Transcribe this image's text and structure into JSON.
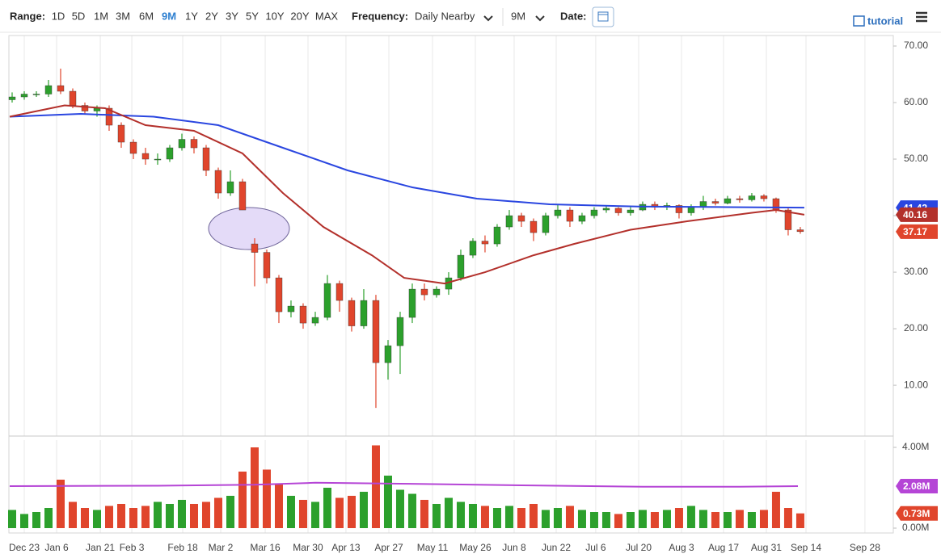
{
  "toolbar": {
    "range_label": "Range:",
    "ranges": [
      "1D",
      "5D",
      "1M",
      "3M",
      "6M",
      "9M",
      "1Y",
      "2Y",
      "3Y",
      "5Y",
      "10Y",
      "20Y",
      "MAX"
    ],
    "active_range": 5,
    "active_color": "#2d7fd0",
    "frequency_label": "Frequency:",
    "frequency": "Daily Nearby",
    "period": "9M",
    "date_label": "Date:",
    "tutorial": "tutorial"
  },
  "chart_data": [
    {
      "type": "candlestick",
      "up_color": "#2ca02c",
      "down_color": "#e0452c",
      "open": [
        60.5,
        61,
        61.5,
        61.5,
        63,
        62,
        59.5,
        58.5,
        59,
        56,
        53,
        51,
        50,
        50,
        52,
        53.5,
        52,
        48,
        44,
        46,
        35,
        33.5,
        29,
        23,
        24,
        21,
        22,
        28,
        25,
        20.5,
        25,
        14,
        17,
        22,
        27,
        26,
        27,
        29,
        33,
        35.5,
        35,
        38,
        40,
        39,
        37,
        40,
        41,
        39,
        40,
        41,
        41.3,
        40.5,
        41,
        42,
        41.5,
        41.8,
        40.5,
        41.5,
        42.5,
        42.2,
        43,
        42.8,
        43.5,
        43,
        41,
        37.5
      ],
      "high": [
        61.8,
        62,
        62,
        64,
        66,
        62.5,
        60,
        59.5,
        59.5,
        56.5,
        53.5,
        52,
        51,
        52.5,
        54.5,
        54,
        52.5,
        48.5,
        48,
        46.5,
        36,
        34,
        29.5,
        25,
        24.5,
        23,
        29.5,
        28.5,
        25.5,
        27,
        26,
        18,
        23,
        28,
        28,
        27.5,
        30,
        34,
        36,
        36.5,
        38.5,
        41,
        40.5,
        39.5,
        40.5,
        42,
        41.5,
        40.5,
        41.5,
        41.8,
        41.5,
        41.5,
        42.5,
        42.5,
        42.3,
        42,
        42,
        43.5,
        43,
        43.5,
        43.5,
        44,
        43.8,
        43.2,
        41.5,
        38
      ],
      "low": [
        60,
        60.5,
        61,
        61,
        61.5,
        59,
        58,
        57.5,
        55,
        52,
        50,
        49,
        49,
        49.5,
        51.5,
        51,
        47,
        43,
        43.5,
        41,
        27.5,
        28,
        21,
        22,
        20,
        20.5,
        21.5,
        23,
        19.5,
        20,
        6,
        11,
        12,
        21,
        25,
        25.5,
        26,
        28.5,
        32.5,
        33.5,
        34.5,
        37.5,
        38,
        35.5,
        36.5,
        39.5,
        38,
        38.5,
        39.5,
        40.5,
        40,
        40,
        40.8,
        41,
        41,
        39.5,
        40,
        41,
        41.8,
        42,
        42.3,
        42.5,
        42.5,
        40.5,
        36.5,
        36.8
      ],
      "close": [
        61,
        61.5,
        61.5,
        63,
        62,
        59.5,
        58.5,
        59,
        56,
        53,
        51,
        50,
        50,
        52,
        53.5,
        52,
        48,
        44,
        46,
        41,
        33.5,
        29,
        23,
        24,
        21,
        22,
        28,
        25,
        20.5,
        25,
        14,
        17,
        22,
        27,
        26,
        27,
        29,
        33,
        35.5,
        35,
        38,
        40,
        39,
        37,
        40,
        41,
        39,
        40,
        41,
        41.3,
        40.5,
        41,
        42,
        41.5,
        41.8,
        40.5,
        41.5,
        42.5,
        42.2,
        43,
        42.8,
        43.5,
        43,
        41,
        37.5,
        37.17
      ],
      "series": [
        {
          "color": "#2a46e0",
          "x": [
            -0.2,
            5.67,
            11.67,
            17,
            22.33,
            27.67,
            33,
            38.33,
            44.33,
            51.67,
            59,
            65.33
          ],
          "values": [
            57.5,
            58,
            57.5,
            56,
            52,
            48,
            45,
            43,
            42,
            41.6,
            41.5,
            41.42
          ]
        },
        {
          "color": "#b3302b",
          "x": [
            -0.2,
            4.33,
            7.67,
            11,
            15,
            19,
            22.33,
            25.67,
            29.67,
            32.33,
            35.67,
            39,
            43,
            46.33,
            51,
            55.67,
            61,
            63,
            65.33
          ],
          "values": [
            57.5,
            59.5,
            59,
            56,
            55,
            51,
            44,
            38,
            33,
            29,
            28,
            30,
            33,
            35,
            37.5,
            39,
            40.5,
            41,
            40.16
          ]
        }
      ],
      "xlim": [
        -0.2,
        72.67
      ],
      "ylim": [
        1.3,
        70
      ],
      "yticks": [
        {
          "value": 70,
          "label": "70.00"
        },
        {
          "value": 60,
          "label": "60.00"
        },
        {
          "value": 50,
          "label": "50.00"
        },
        {
          "value": 40,
          "label": "40.00"
        },
        {
          "value": 30,
          "label": "30.00"
        },
        {
          "value": 20,
          "label": "20.00"
        },
        {
          "value": 10,
          "label": "10.00"
        }
      ],
      "grid": "x"
    },
    {
      "type": "bar",
      "values": [
        0.9,
        0.7,
        0.8,
        1.0,
        2.4,
        1.3,
        1.0,
        0.9,
        1.1,
        1.2,
        1.0,
        1.1,
        1.3,
        1.2,
        1.4,
        1.2,
        1.3,
        1.5,
        1.6,
        2.8,
        4.0,
        2.9,
        2.2,
        1.6,
        1.4,
        1.3,
        2.0,
        1.5,
        1.6,
        1.8,
        4.1,
        2.6,
        1.9,
        1.7,
        1.4,
        1.2,
        1.5,
        1.3,
        1.2,
        1.1,
        1.0,
        1.1,
        1.0,
        1.2,
        0.9,
        1.0,
        1.1,
        0.9,
        0.8,
        0.8,
        0.7,
        0.8,
        0.9,
        0.8,
        0.9,
        1.0,
        1.1,
        0.9,
        0.8,
        0.8,
        0.9,
        0.8,
        0.9,
        1.8,
        1.0,
        0.73
      ],
      "value_labels": [
        null,
        null,
        null,
        null,
        null,
        null,
        null,
        null,
        null,
        null,
        null,
        null,
        null,
        null,
        null,
        null,
        null,
        null,
        null,
        null,
        null,
        null,
        null,
        null,
        null,
        null,
        null,
        null,
        null,
        null,
        null,
        null,
        null,
        null,
        null,
        null,
        null,
        null,
        null,
        null,
        null,
        null,
        null,
        null,
        null,
        null,
        null,
        null,
        null,
        null,
        null,
        null,
        null,
        null,
        null,
        null,
        null,
        null,
        null,
        null,
        null,
        null,
        null,
        null,
        null,
        "0.73M"
      ],
      "series": [
        {
          "color": "#b545d6",
          "x": [
            -0.2,
            12,
            20,
            25,
            32,
            42,
            52,
            60,
            64.8
          ],
          "values": [
            2.08,
            2.1,
            2.15,
            2.25,
            2.2,
            2.12,
            2.05,
            2.05,
            2.08
          ],
          "value_labels": [
            null,
            null,
            null,
            null,
            null,
            null,
            null,
            null,
            "2.08M"
          ]
        }
      ],
      "xlim": [
        -0.2,
        72.67
      ],
      "ylim": [
        0,
        4.24
      ],
      "yticks": [
        {
          "value": 4,
          "label": "4.00M"
        },
        {
          "value": 0,
          "label": "0.00M"
        }
      ],
      "xticks": [
        {
          "value": 1,
          "label": "Dec 23"
        },
        {
          "value": 3.67,
          "label": "Jan 6"
        },
        {
          "value": 7.27,
          "label": "Jan 21"
        },
        {
          "value": 9.87,
          "label": "Feb 3"
        },
        {
          "value": 14.07,
          "label": "Feb 18"
        },
        {
          "value": 17.2,
          "label": "Mar 2"
        },
        {
          "value": 20.87,
          "label": "Mar 16"
        },
        {
          "value": 24.4,
          "label": "Mar 30"
        },
        {
          "value": 27.53,
          "label": "Apr 13"
        },
        {
          "value": 31.07,
          "label": "Apr 27"
        },
        {
          "value": 34.67,
          "label": "May 11"
        },
        {
          "value": 38.2,
          "label": "May 26"
        },
        {
          "value": 41.4,
          "label": "Jun 8"
        },
        {
          "value": 44.87,
          "label": "Jun 22"
        },
        {
          "value": 48.13,
          "label": "Jul 6"
        },
        {
          "value": 51.67,
          "label": "Jul 20"
        },
        {
          "value": 55.2,
          "label": "Aug 3"
        },
        {
          "value": 58.67,
          "label": "Aug 17"
        },
        {
          "value": 62.2,
          "label": "Aug 31"
        },
        {
          "value": 65.47,
          "label": "Sep 14"
        },
        {
          "value": 70.33,
          "label": "Sep 28"
        }
      ],
      "grid": "x"
    }
  ]
}
